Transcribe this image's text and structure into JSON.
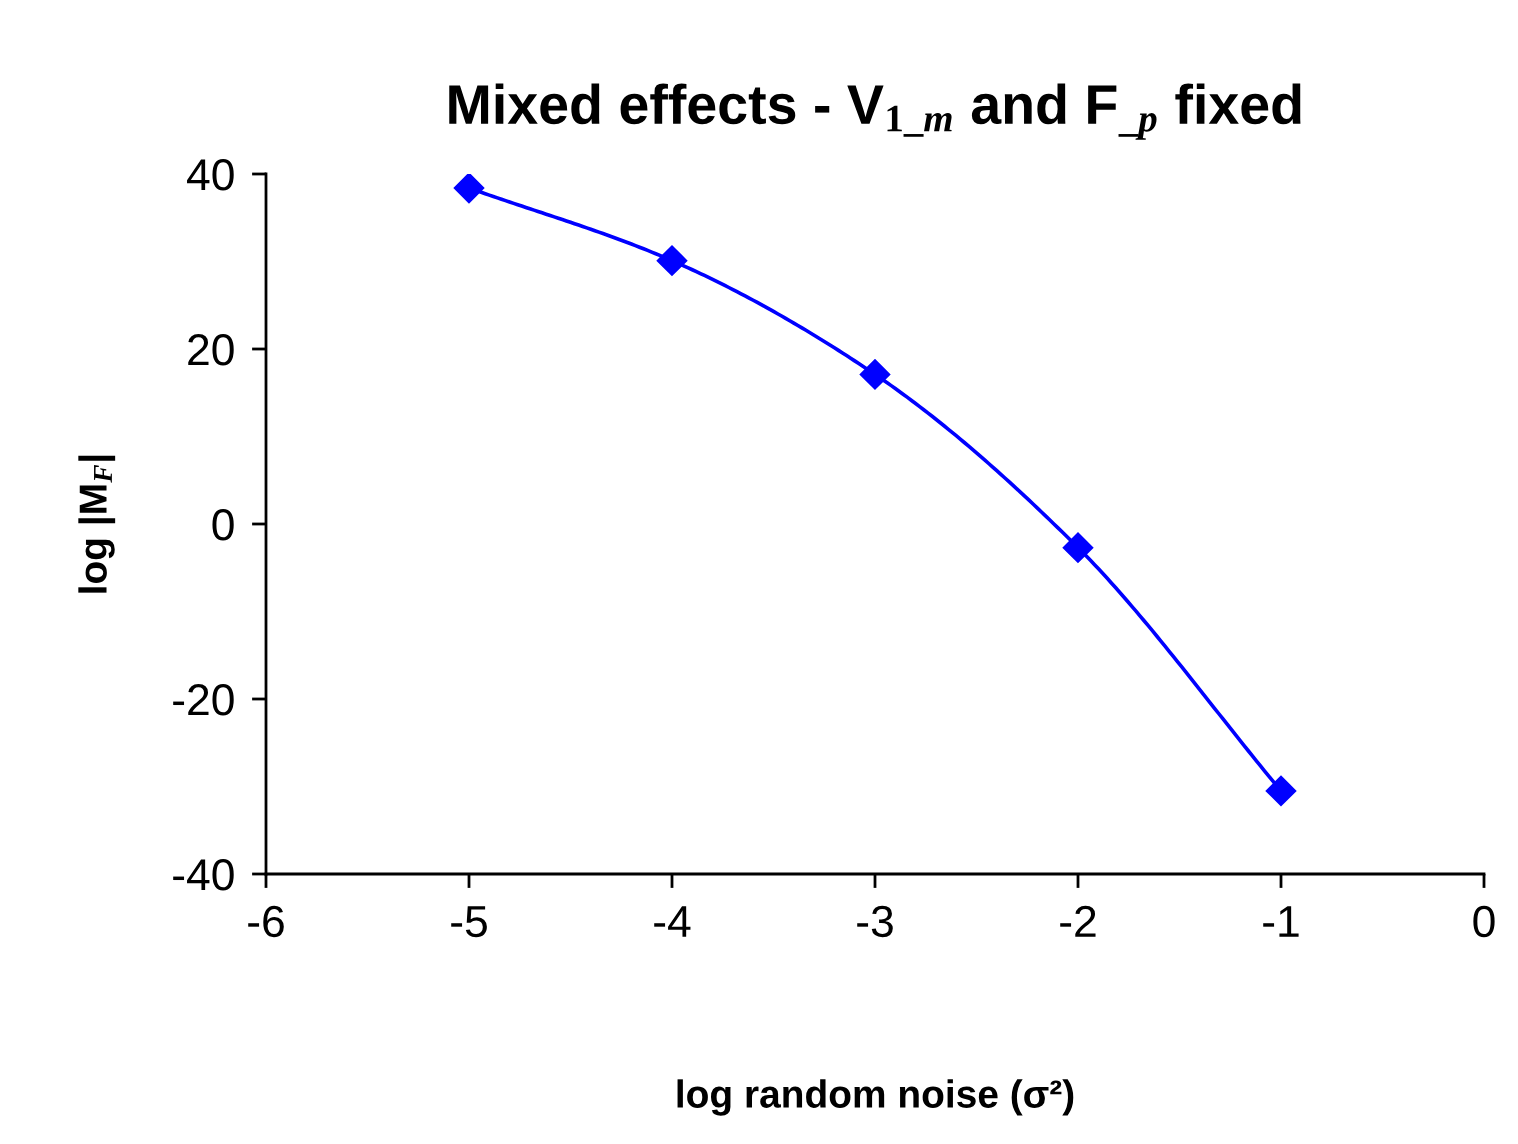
{
  "chart_data": {
    "type": "line",
    "title": "Mixed effects - V$_{1_m}$ and F$_{_p}$ fixed",
    "xlabel": "log random noise (σ²)",
    "ylabel": "log |M$_{F}$|",
    "x": [
      -5,
      -4,
      -3,
      -2,
      -1
    ],
    "series": [
      {
        "color": "#0000ff",
        "values": [
          38.4,
          30.1,
          17.1,
          -2.7,
          -30.5
        ]
      }
    ],
    "marker": "diamond",
    "line_style": "solid",
    "xlim": [
      -6,
      0
    ],
    "xticks": [
      -6,
      -5,
      -4,
      -3,
      -2,
      -1,
      0
    ],
    "ylim": [
      -40,
      40
    ],
    "yticks": [
      -40,
      -20,
      0,
      20,
      40
    ],
    "grid": false
  }
}
